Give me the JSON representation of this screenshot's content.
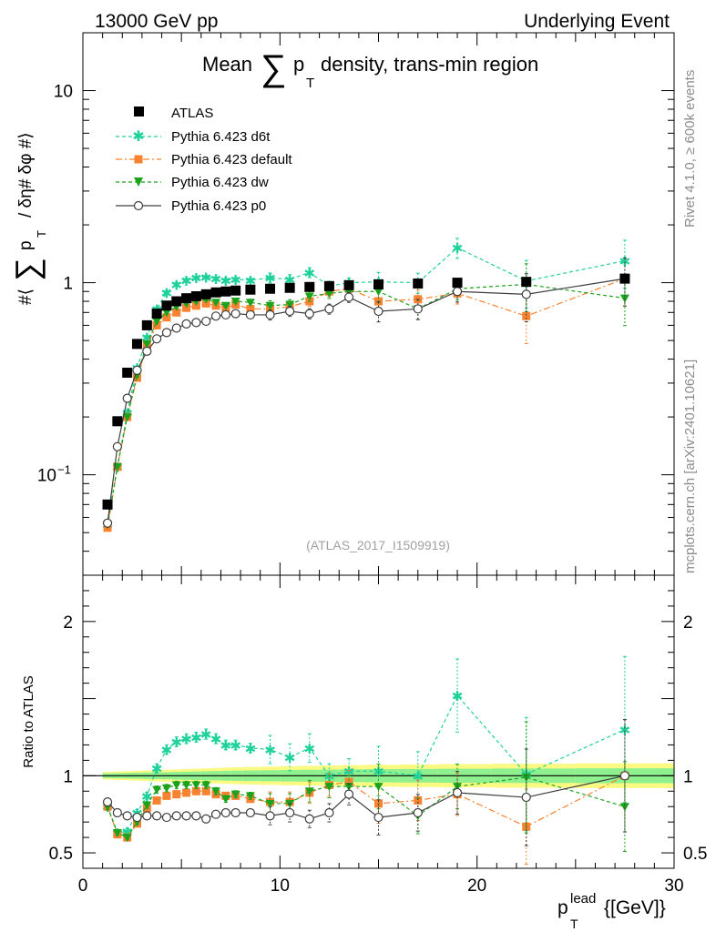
{
  "header": {
    "left": "13000 GeV pp",
    "right": "Underlying Event"
  },
  "side": {
    "rivet": "Rivet 4.1.0, ≥ 600k events",
    "mcplots": "mcplots.cern.ch [arXiv:2401.10621]"
  },
  "analysis_id": "(ATLAS_2017_I1509919)",
  "colors": {
    "atlas": "#000000",
    "d6t": "#1fd19b",
    "default": "#f7822f",
    "dw": "#1ba31b",
    "p0": "#3d3d3d"
  },
  "chart_data": [
    {
      "type": "scatter",
      "yscale": "log",
      "title": "Mean ∑ pT density, trans-min region",
      "title_parts": {
        "pre": "Mean",
        "sum": "∑",
        "p": "p",
        "sub": "T",
        "post": "density, trans-min region"
      },
      "ylabel_parts": {
        "pre": "#⟨",
        "sum": "∑",
        "p": "p",
        "sub": "T",
        "post": "/ δη# δφ #⟩"
      },
      "xlim": [
        0,
        30
      ],
      "ylim": [
        0.03,
        20
      ],
      "y_ticks": [
        {
          "value": 0.1,
          "label": "10",
          "exp": "−1"
        },
        {
          "value": 1,
          "label": "1"
        },
        {
          "value": 10,
          "label": "10"
        }
      ],
      "x": [
        1.25,
        1.75,
        2.25,
        2.75,
        3.25,
        3.75,
        4.25,
        4.75,
        5.25,
        5.75,
        6.25,
        6.75,
        7.25,
        7.75,
        8.5,
        9.5,
        10.5,
        11.5,
        12.5,
        13.5,
        15,
        17,
        19,
        22.5,
        27.5
      ],
      "series": [
        {
          "name": "ATLAS",
          "values": [
            0.07,
            0.19,
            0.34,
            0.48,
            0.6,
            0.69,
            0.76,
            0.8,
            0.83,
            0.85,
            0.87,
            0.89,
            0.9,
            0.91,
            0.92,
            0.93,
            0.94,
            0.95,
            0.96,
            0.97,
            0.98,
            0.99,
            1.0,
            1.01,
            1.05
          ]
        },
        {
          "name": "Pythia 6.423 d6t",
          "values": [
            0.055,
            0.11,
            0.21,
            0.36,
            0.52,
            0.73,
            0.89,
            0.98,
            1.03,
            1.06,
            1.07,
            1.05,
            1.03,
            1.04,
            1.03,
            1.06,
            1.04,
            1.13,
            0.96,
            1.0,
            1.01,
            1.0,
            1.52,
            1.02,
            1.3
          ]
        },
        {
          "name": "Pythia 6.423 default",
          "values": [
            0.053,
            0.11,
            0.2,
            0.32,
            0.47,
            0.6,
            0.66,
            0.7,
            0.74,
            0.76,
            0.78,
            0.76,
            0.74,
            0.77,
            0.73,
            0.73,
            0.75,
            0.8,
            0.9,
            0.93,
            0.8,
            0.82,
            0.88,
            0.67,
            1.05
          ]
        },
        {
          "name": "Pythia 6.423 dw",
          "values": [
            0.055,
            0.11,
            0.2,
            0.33,
            0.48,
            0.63,
            0.7,
            0.75,
            0.78,
            0.8,
            0.82,
            0.79,
            0.76,
            0.8,
            0.79,
            0.76,
            0.77,
            0.85,
            0.88,
            0.9,
            0.9,
            0.73,
            0.93,
            0.98,
            0.83
          ]
        },
        {
          "name": "Pythia 6.423 p0",
          "values": [
            0.056,
            0.14,
            0.25,
            0.35,
            0.44,
            0.51,
            0.55,
            0.58,
            0.61,
            0.62,
            0.63,
            0.67,
            0.68,
            0.69,
            0.68,
            0.68,
            0.71,
            0.69,
            0.73,
            0.84,
            0.71,
            0.73,
            0.9,
            0.87,
            1.05
          ]
        }
      ],
      "legend": [
        "ATLAS",
        "Pythia 6.423 d6t",
        "Pythia 6.423 default",
        "Pythia 6.423 dw",
        "Pythia 6.423 p0"
      ],
      "legend_position": "top-left"
    },
    {
      "type": "scatter",
      "ylabel": "Ratio to ATLAS",
      "xlabel_parts": {
        "p": "p",
        "sub": "T",
        "sup": "lead",
        "unit": "{[GeV]}"
      },
      "xlim": [
        0,
        30
      ],
      "ylim": [
        0.4,
        2.3
      ],
      "x_ticks": [
        0,
        10,
        20,
        30
      ],
      "y_ticks": [
        {
          "value": 0.5,
          "label": "0.5"
        },
        {
          "value": 1,
          "label": "1"
        },
        {
          "value": 2,
          "label": "2"
        }
      ],
      "series": [
        {
          "name": "Pythia 6.423 d6t",
          "values": [
            0.8,
            0.63,
            0.64,
            0.76,
            0.87,
            1.05,
            1.17,
            1.22,
            1.24,
            1.25,
            1.27,
            1.24,
            1.2,
            1.2,
            1.18,
            1.17,
            1.12,
            1.18,
            1.0,
            1.03,
            1.03,
            1.0,
            1.52,
            1.01,
            1.3
          ]
        },
        {
          "name": "Pythia 6.423 default",
          "values": [
            0.8,
            0.62,
            0.6,
            0.69,
            0.79,
            0.84,
            0.87,
            0.88,
            0.89,
            0.9,
            0.9,
            0.88,
            0.87,
            0.87,
            0.85,
            0.83,
            0.83,
            0.89,
            0.94,
            0.96,
            0.82,
            0.84,
            0.88,
            0.67,
            1.0
          ]
        },
        {
          "name": "Pythia 6.423 dw",
          "values": [
            0.8,
            0.63,
            0.6,
            0.7,
            0.81,
            0.91,
            0.92,
            0.94,
            0.94,
            0.94,
            0.94,
            0.9,
            0.85,
            0.88,
            0.87,
            0.82,
            0.82,
            0.9,
            0.93,
            0.93,
            0.93,
            0.74,
            0.93,
            0.99,
            0.8
          ]
        },
        {
          "name": "Pythia 6.423 p0",
          "values": [
            0.83,
            0.76,
            0.74,
            0.73,
            0.74,
            0.74,
            0.73,
            0.74,
            0.74,
            0.74,
            0.72,
            0.75,
            0.76,
            0.76,
            0.76,
            0.74,
            0.76,
            0.72,
            0.76,
            0.88,
            0.73,
            0.76,
            0.89,
            0.86,
            1.0
          ]
        }
      ]
    }
  ]
}
